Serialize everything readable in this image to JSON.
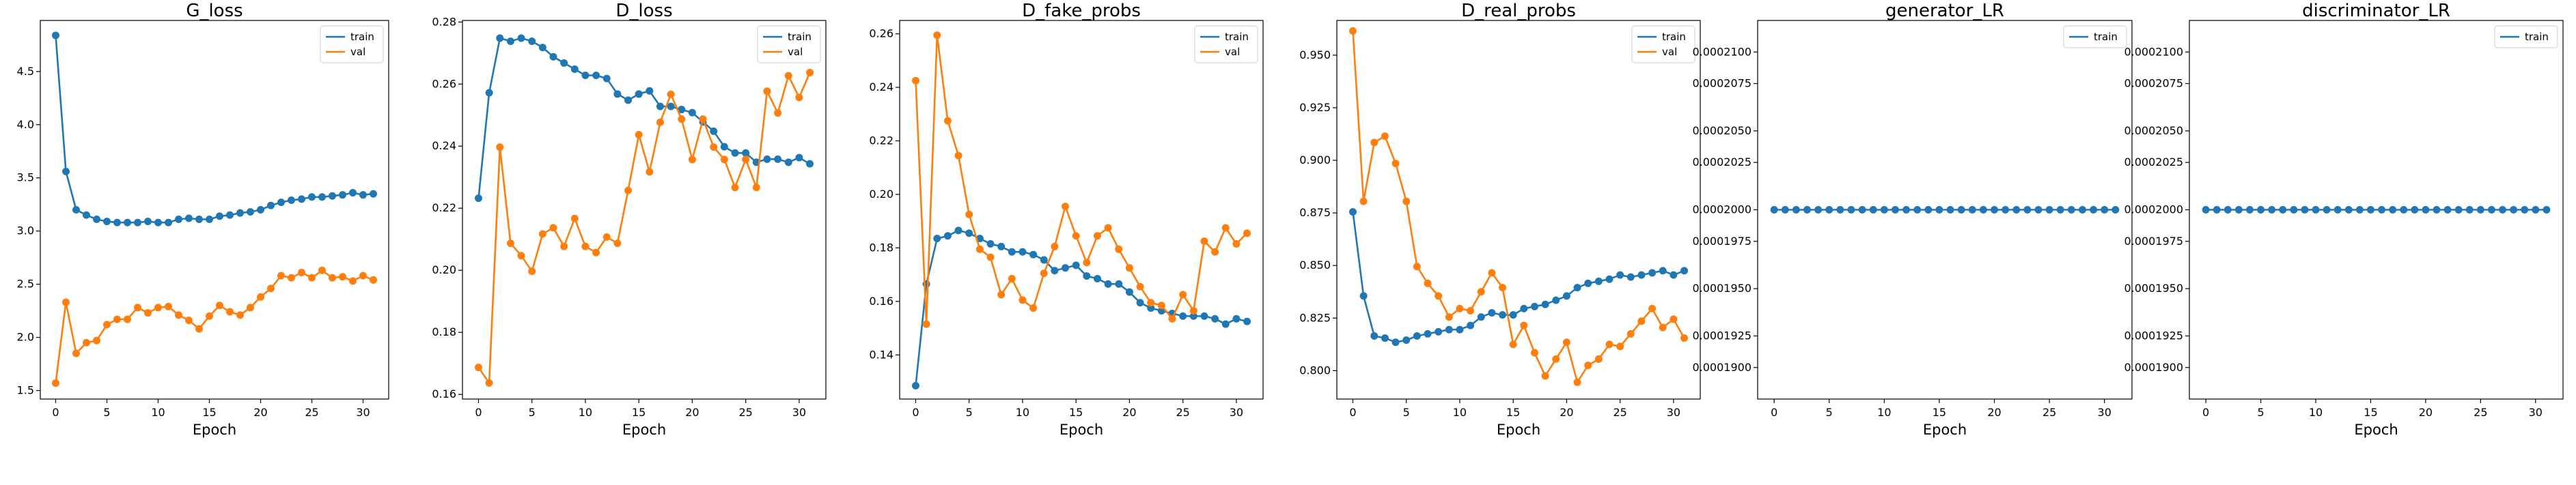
{
  "chart_data": [
    {
      "type": "line",
      "title": "G_loss",
      "xlabel": "Epoch",
      "ylabel": "",
      "xlim": [
        -1.5,
        32.5
      ],
      "ylim": [
        1.42,
        4.98
      ],
      "xticks": [
        0,
        5,
        10,
        15,
        20,
        25,
        30
      ],
      "xtick_labels": [
        "0",
        "5",
        "10",
        "15",
        "20",
        "25",
        "30"
      ],
      "yticks": [
        1.5,
        2.0,
        2.5,
        3.0,
        3.5,
        4.0,
        4.5
      ],
      "ytick_labels": [
        "1.5",
        "2.0",
        "2.5",
        "3.0",
        "3.5",
        "4.0",
        "4.5"
      ],
      "legend": "top-right",
      "grid": false,
      "series": [
        {
          "name": "train",
          "color": "#1f77b4",
          "values": [
            4.84,
            3.56,
            3.2,
            3.15,
            3.11,
            3.09,
            3.08,
            3.08,
            3.08,
            3.09,
            3.08,
            3.08,
            3.11,
            3.12,
            3.11,
            3.11,
            3.14,
            3.15,
            3.17,
            3.18,
            3.2,
            3.24,
            3.27,
            3.29,
            3.3,
            3.32,
            3.32,
            3.33,
            3.34,
            3.36,
            3.34,
            3.35
          ]
        },
        {
          "name": "val",
          "color": "#ff7f0e",
          "values": [
            1.57,
            2.33,
            1.85,
            1.95,
            1.97,
            2.12,
            2.17,
            2.17,
            2.28,
            2.23,
            2.28,
            2.29,
            2.21,
            2.16,
            2.08,
            2.2,
            2.3,
            2.24,
            2.21,
            2.28,
            2.38,
            2.46,
            2.58,
            2.56,
            2.61,
            2.56,
            2.63,
            2.56,
            2.57,
            2.53,
            2.58,
            2.54
          ]
        }
      ]
    },
    {
      "type": "line",
      "title": "D_loss",
      "xlabel": "Epoch",
      "ylabel": "",
      "xlim": [
        -1.5,
        32.5
      ],
      "ylim": [
        0.1585,
        0.2805
      ],
      "xticks": [
        0,
        5,
        10,
        15,
        20,
        25,
        30
      ],
      "xtick_labels": [
        "0",
        "5",
        "10",
        "15",
        "20",
        "25",
        "30"
      ],
      "yticks": [
        0.16,
        0.18,
        0.2,
        0.22,
        0.24,
        0.26,
        0.28
      ],
      "ytick_labels": [
        "0.16",
        "0.18",
        "0.20",
        "0.22",
        "0.24",
        "0.26",
        "0.28"
      ],
      "legend": "top-right",
      "grid": false,
      "series": [
        {
          "name": "train",
          "color": "#1f77b4",
          "values": [
            0.2232,
            0.2572,
            0.2748,
            0.2738,
            0.2748,
            0.2738,
            0.2718,
            0.2688,
            0.2668,
            0.2648,
            0.2628,
            0.2628,
            0.2618,
            0.2568,
            0.2548,
            0.2568,
            0.2578,
            0.2528,
            0.2528,
            0.2518,
            0.2508,
            0.2478,
            0.2448,
            0.2398,
            0.2378,
            0.2378,
            0.2348,
            0.2358,
            0.2358,
            0.2348,
            0.2363,
            0.2343
          ]
        },
        {
          "name": "val",
          "color": "#ff7f0e",
          "values": [
            0.1687,
            0.1637,
            0.2397,
            0.2087,
            0.2047,
            0.1997,
            0.2117,
            0.2137,
            0.2077,
            0.2167,
            0.2077,
            0.2057,
            0.2107,
            0.2087,
            0.2257,
            0.2437,
            0.2317,
            0.2477,
            0.2567,
            0.2487,
            0.2357,
            0.2487,
            0.2397,
            0.2357,
            0.2267,
            0.2357,
            0.2267,
            0.2577,
            0.2507,
            0.2627,
            0.2557,
            0.2637
          ]
        }
      ]
    },
    {
      "type": "line",
      "title": "D_fake_probs",
      "xlabel": "Epoch",
      "ylabel": "",
      "xlim": [
        -1.5,
        32.5
      ],
      "ylim": [
        0.1235,
        0.265
      ],
      "xticks": [
        0,
        5,
        10,
        15,
        20,
        25,
        30
      ],
      "xtick_labels": [
        "0",
        "5",
        "10",
        "15",
        "20",
        "25",
        "30"
      ],
      "yticks": [
        0.14,
        0.16,
        0.18,
        0.2,
        0.22,
        0.24,
        0.26
      ],
      "ytick_labels": [
        "0.14",
        "0.16",
        "0.18",
        "0.20",
        "0.22",
        "0.24",
        "0.26"
      ],
      "legend": "top-right",
      "grid": false,
      "series": [
        {
          "name": "train",
          "color": "#1f77b4",
          "values": [
            0.1285,
            0.1665,
            0.1835,
            0.1845,
            0.1865,
            0.1855,
            0.1835,
            0.1815,
            0.1805,
            0.1785,
            0.1785,
            0.1775,
            0.1755,
            0.1715,
            0.1725,
            0.1735,
            0.1695,
            0.1685,
            0.1665,
            0.1665,
            0.1635,
            0.1595,
            0.1575,
            0.1565,
            0.1555,
            0.1545,
            0.1545,
            0.1545,
            0.1535,
            0.1515,
            0.1535,
            0.1525
          ]
        },
        {
          "name": "val",
          "color": "#ff7f0e",
          "values": [
            0.2425,
            0.1515,
            0.2595,
            0.2275,
            0.2145,
            0.1925,
            0.1795,
            0.1765,
            0.1625,
            0.1685,
            0.1605,
            0.1575,
            0.1705,
            0.1805,
            0.1955,
            0.1845,
            0.1745,
            0.1845,
            0.1875,
            0.1795,
            0.1725,
            0.1655,
            0.1595,
            0.1585,
            0.1535,
            0.1625,
            0.1565,
            0.1825,
            0.1785,
            0.1875,
            0.1815,
            0.1855
          ]
        }
      ]
    },
    {
      "type": "line",
      "title": "D_real_probs",
      "xlabel": "Epoch",
      "ylabel": "",
      "xlim": [
        -1.5,
        32.5
      ],
      "ylim": [
        0.7865,
        0.9665
      ],
      "xticks": [
        0,
        5,
        10,
        15,
        20,
        25,
        30
      ],
      "xtick_labels": [
        "0",
        "5",
        "10",
        "15",
        "20",
        "25",
        "30"
      ],
      "yticks": [
        0.8,
        0.825,
        0.85,
        0.875,
        0.9,
        0.925,
        0.95
      ],
      "ytick_labels": [
        "0.800",
        "0.825",
        "0.850",
        "0.875",
        "0.900",
        "0.925",
        "0.950"
      ],
      "legend": "top-right",
      "grid": false,
      "series": [
        {
          "name": "train",
          "color": "#1f77b4",
          "values": [
            0.8755,
            0.8355,
            0.8165,
            0.8155,
            0.8135,
            0.8145,
            0.8165,
            0.8175,
            0.8185,
            0.8195,
            0.8195,
            0.8215,
            0.8255,
            0.8275,
            0.8265,
            0.8265,
            0.8295,
            0.8305,
            0.8315,
            0.8335,
            0.8355,
            0.8395,
            0.8415,
            0.8425,
            0.8435,
            0.8455,
            0.8445,
            0.8455,
            0.8465,
            0.8475,
            0.8455,
            0.8475
          ]
        },
        {
          "name": "val",
          "color": "#ff7f0e",
          "values": [
            0.9615,
            0.8805,
            0.9085,
            0.9115,
            0.8985,
            0.8805,
            0.8495,
            0.8415,
            0.8355,
            0.8255,
            0.8295,
            0.8285,
            0.8375,
            0.8465,
            0.8395,
            0.8125,
            0.8215,
            0.8085,
            0.7975,
            0.8055,
            0.8135,
            0.7945,
            0.8025,
            0.8055,
            0.8125,
            0.8115,
            0.8175,
            0.8235,
            0.8295,
            0.8205,
            0.8245,
            0.8155
          ]
        }
      ]
    },
    {
      "type": "line",
      "title": "generator_LR",
      "xlabel": "Epoch",
      "ylabel": "",
      "xlim": [
        -1.5,
        32.5
      ],
      "ylim": [
        0.000188,
        0.000212
      ],
      "xticks": [
        0,
        5,
        10,
        15,
        20,
        25,
        30
      ],
      "xtick_labels": [
        "0",
        "5",
        "10",
        "15",
        "20",
        "25",
        "30"
      ],
      "yticks": [
        0.00019,
        0.000192,
        0.000195,
        0.000198,
        0.0002,
        0.000203,
        0.000205,
        0.000208,
        0.00021
      ],
      "ytick_labels": [
        "0.0001900",
        "0.0001925",
        "0.0001950",
        "0.0001975",
        "0.0002000",
        "0.0002025",
        "0.0002050",
        "0.0002075",
        "0.0002100"
      ],
      "legend": "top-right",
      "grid": false,
      "series": [
        {
          "name": "train",
          "color": "#1f77b4",
          "values": [
            0.0002,
            0.0002,
            0.0002,
            0.0002,
            0.0002,
            0.0002,
            0.0002,
            0.0002,
            0.0002,
            0.0002,
            0.0002,
            0.0002,
            0.0002,
            0.0002,
            0.0002,
            0.0002,
            0.0002,
            0.0002,
            0.0002,
            0.0002,
            0.0002,
            0.0002,
            0.0002,
            0.0002,
            0.0002,
            0.0002,
            0.0002,
            0.0002,
            0.0002,
            0.0002,
            0.0002,
            0.0002
          ]
        }
      ]
    },
    {
      "type": "line",
      "title": "discriminator_LR",
      "xlabel": "Epoch",
      "ylabel": "",
      "xlim": [
        -1.5,
        32.5
      ],
      "ylim": [
        0.000188,
        0.000212
      ],
      "xticks": [
        0,
        5,
        10,
        15,
        20,
        25,
        30
      ],
      "xtick_labels": [
        "0",
        "5",
        "10",
        "15",
        "20",
        "25",
        "30"
      ],
      "yticks": [
        0.00019,
        0.000192,
        0.000195,
        0.000198,
        0.0002,
        0.000203,
        0.000205,
        0.000208,
        0.00021
      ],
      "ytick_labels": [
        "0.0001900",
        "0.0001925",
        "0.0001950",
        "0.0001975",
        "0.0002000",
        "0.0002025",
        "0.0002050",
        "0.0002075",
        "0.0002100"
      ],
      "legend": "top-right",
      "grid": false,
      "series": [
        {
          "name": "train",
          "color": "#1f77b4",
          "values": [
            0.0002,
            0.0002,
            0.0002,
            0.0002,
            0.0002,
            0.0002,
            0.0002,
            0.0002,
            0.0002,
            0.0002,
            0.0002,
            0.0002,
            0.0002,
            0.0002,
            0.0002,
            0.0002,
            0.0002,
            0.0002,
            0.0002,
            0.0002,
            0.0002,
            0.0002,
            0.0002,
            0.0002,
            0.0002,
            0.0002,
            0.0002,
            0.0002,
            0.0002,
            0.0002,
            0.0002,
            0.0002
          ]
        }
      ]
    }
  ]
}
